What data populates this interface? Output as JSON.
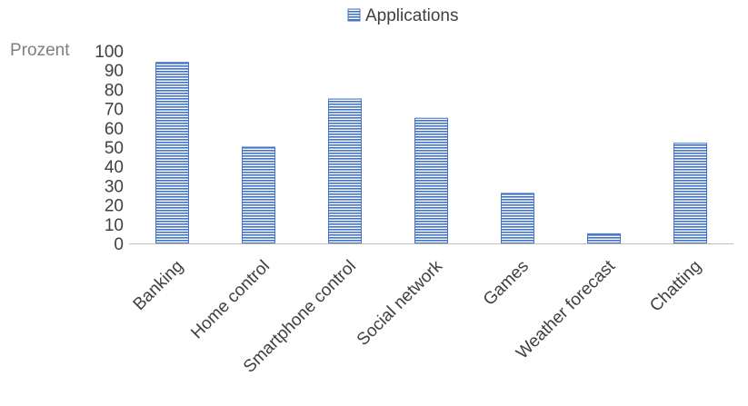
{
  "chart_data": {
    "type": "bar",
    "categories": [
      "Banking",
      "Home control",
      "Smartphone control",
      "Social network",
      "Games",
      "Weather forecast",
      "Chatting"
    ],
    "series": [
      {
        "name": "Applications",
        "values": [
          94,
          50,
          75,
          65,
          26,
          5,
          52
        ]
      }
    ],
    "ylabel": "Prozent",
    "ylim": [
      0,
      100
    ],
    "yticks": [
      0,
      10,
      20,
      30,
      40,
      50,
      60,
      70,
      80,
      90,
      100
    ],
    "legend_position": "top",
    "grid": false,
    "colors": {
      "bar_fill": "#8faadc",
      "bar_stripe": "#4472c4",
      "axis": "#bfbfbf"
    }
  }
}
